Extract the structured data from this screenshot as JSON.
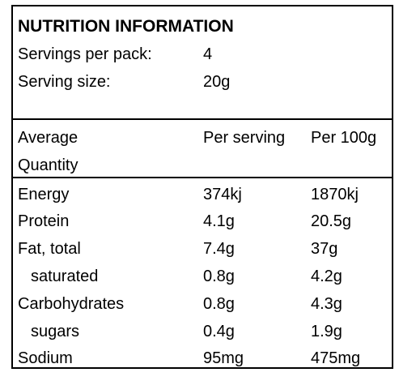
{
  "panel": {
    "title": "NUTRITION INFORMATION",
    "servings_per_pack_label": "Servings per pack:",
    "servings_per_pack_value": "4",
    "serving_size_label": "Serving size:",
    "serving_size_value": "20g"
  },
  "table": {
    "headers": {
      "quantity_line1": "Average",
      "quantity_line2": "Quantity",
      "per_serving": "Per serving",
      "per_100g": "Per 100g"
    },
    "rows": [
      {
        "name": "Energy",
        "per_serving": "374kj",
        "per_100g": "1870kj"
      },
      {
        "name": "Protein",
        "per_serving": "4.1g",
        "per_100g": "20.5g"
      },
      {
        "name": "Fat, total",
        "per_serving": "7.4g",
        "per_100g": "37g"
      },
      {
        "name": "saturated",
        "per_serving": "0.8g",
        "per_100g": "4.2g"
      },
      {
        "name": "Carbohydrates",
        "per_serving": "0.8g",
        "per_100g": "4.3g"
      },
      {
        "name": "sugars",
        "per_serving": "0.4g",
        "per_100g": "1.9g"
      },
      {
        "name": "Sodium",
        "per_serving": "95mg",
        "per_100g": "475mg"
      }
    ]
  }
}
